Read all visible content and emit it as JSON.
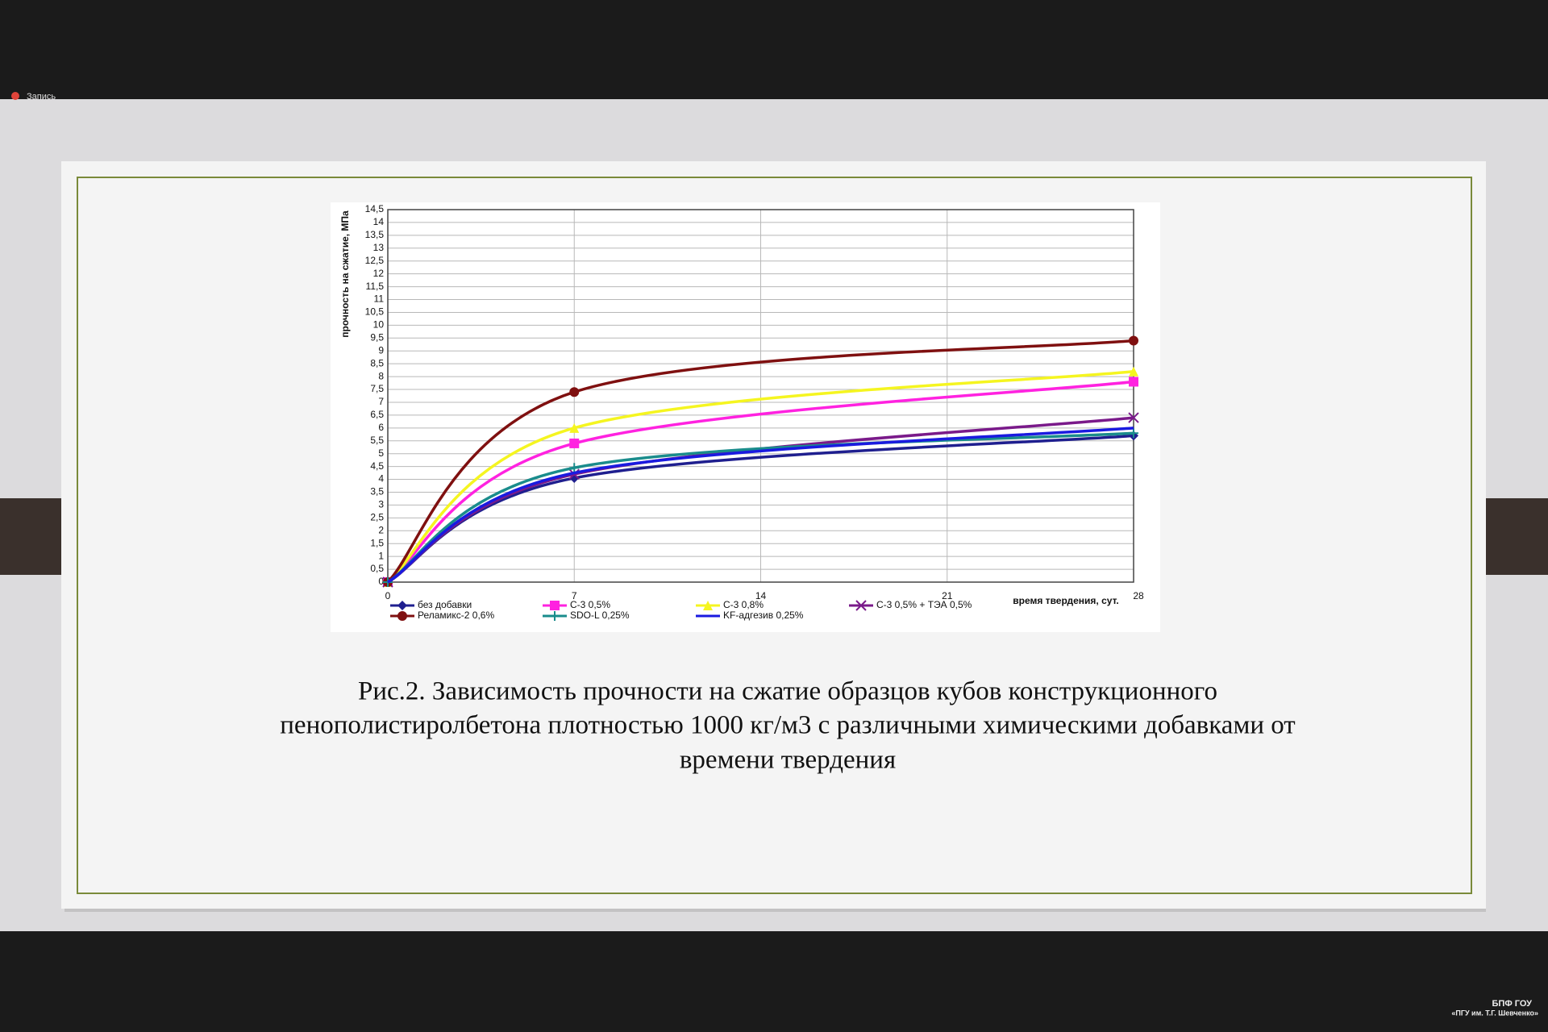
{
  "recording": "Запись",
  "chart_data": {
    "type": "line",
    "y_label": "прочность на сжатие, МПа",
    "x_label": "время твердения, сут.",
    "x": [
      0,
      7,
      28
    ],
    "xlim": [
      0,
      28
    ],
    "xticks": [
      0,
      7,
      14,
      21,
      28
    ],
    "ylim": [
      0,
      14.5
    ],
    "yticks": [
      0,
      {
        "value": 0.5,
        "label": "0,5"
      },
      1,
      {
        "value": 1.5,
        "label": "1,5"
      },
      2,
      {
        "value": 2.5,
        "label": "2,5"
      },
      3,
      {
        "value": 3.5,
        "label": "3,5"
      },
      4,
      {
        "value": 4.5,
        "label": "4,5"
      },
      5,
      {
        "value": 5.5,
        "label": "5,5"
      },
      6,
      {
        "value": 6.5,
        "label": "6,5"
      },
      7,
      {
        "value": 7.5,
        "label": "7,5"
      },
      8,
      {
        "value": 8.5,
        "label": "8,5"
      },
      9,
      {
        "value": 9.5,
        "label": "9,5"
      },
      10,
      {
        "value": 10.5,
        "label": "10,5"
      },
      11,
      {
        "value": 11.5,
        "label": "11,5"
      },
      12,
      {
        "value": 12.5,
        "label": "12,5"
      },
      13,
      {
        "value": 13.5,
        "label": "13,5"
      },
      14,
      {
        "value": 14.5,
        "label": "14,5"
      }
    ],
    "grid": true,
    "series": [
      {
        "name": "без добавки",
        "color": "#1f1f8f",
        "marker": "diamond",
        "values": [
          0,
          4.05,
          5.7
        ]
      },
      {
        "name": "С-3  0,5%",
        "color": "#ff22e0",
        "marker": "square",
        "values": [
          0,
          5.4,
          7.8
        ]
      },
      {
        "name": "С-3  0,8%",
        "color": "#f5f520",
        "marker": "triangle",
        "values": [
          0,
          6.0,
          8.2
        ]
      },
      {
        "name": "С-3  0,5% + ТЭА 0,5%",
        "color": "#7a1a8a",
        "marker": "cross",
        "values": [
          0,
          4.2,
          6.4
        ]
      },
      {
        "name": "Реламикс-2  0,6%",
        "color": "#7f1010",
        "marker": "circle",
        "values": [
          0,
          7.4,
          9.4
        ]
      },
      {
        "name": "SDO-L  0,25%",
        "color": "#1a8c8c",
        "marker": "plus",
        "values": [
          0,
          4.45,
          5.8
        ]
      },
      {
        "name": "KF-адгезив 0,25%",
        "color": "#1a1ae0",
        "marker": "none",
        "values": [
          0,
          4.25,
          6.0
        ]
      }
    ]
  },
  "caption": [
    "Рис.2. Зависимость прочности на сжатие образцов кубов конструкционного",
    "пенополистиролбетона плотностью 1000 кг/м3 с различными химическими добавками от",
    "времени твердения"
  ],
  "watermark": [
    "БПФ ГОУ",
    "«ПГУ им. Т.Г. Шевченко»"
  ]
}
